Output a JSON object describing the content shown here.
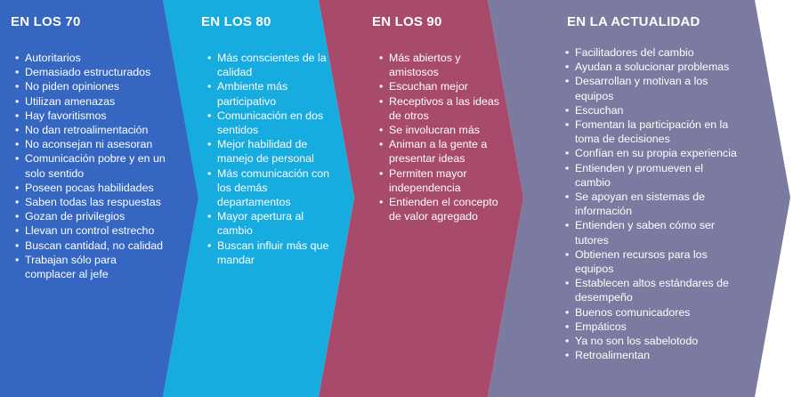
{
  "colors": {
    "panel1": "#3466C2",
    "panel2": "#17ACE0",
    "panel3": "#A84A6C",
    "panel4": "#7B7AA0"
  },
  "panels": [
    {
      "title": "EN LOS 70",
      "items": [
        "Autoritarios",
        "Demasiado estructurados",
        "No piden opiniones",
        "Utilizan amenazas",
        "Hay favoritismos",
        "No dan retroalimentación",
        "No aconsejan ni asesoran",
        "Comunicación pobre y en un solo sentido",
        "Poseen pocas habilidades",
        "Saben todas las respuestas",
        "Gozan de privilegios",
        "Llevan un control estrecho",
        "Buscan cantidad, no calidad",
        "Trabajan sólo para complacer al jefe"
      ]
    },
    {
      "title": "EN LOS 80",
      "items": [
        "Más conscientes de la calidad",
        "Ambiente más participativo",
        "Comunicación en dos sentidos",
        "Mejor habilidad de manejo de personal",
        "Más comunicación con los demás departamentos",
        "Mayor apertura al cambio",
        "Buscan influir más que mandar"
      ]
    },
    {
      "title": "EN LOS 90",
      "items": [
        "Más abiertos y amistosos",
        "Escuchan mejor",
        "Receptivos a las ideas de otros",
        "Se involucran más",
        "Animan a la gente a presentar ideas",
        "Permiten mayor independencia",
        "Entienden el concepto de valor agregado"
      ]
    },
    {
      "title": "EN LA ACTUALIDAD",
      "items": [
        "Facilitadores del cambio",
        "Ayudan a solucionar problemas",
        "Desarrollan y motivan a los equipos",
        "Escuchan",
        "Fomentan la participación en la toma de decisiones",
        "Confían en su propia experiencia",
        "Entienden y promueven el cambio",
        "Se apoyan en sistemas de información",
        "Entienden y saben cómo ser tutores",
        "Obtienen recursos para los equipos",
        "Establecen altos estándares de desempeño",
        "Buenos comunicadores",
        "Empáticos",
        "Ya no son los sabelotodo",
        "Retroalimentan"
      ]
    }
  ]
}
